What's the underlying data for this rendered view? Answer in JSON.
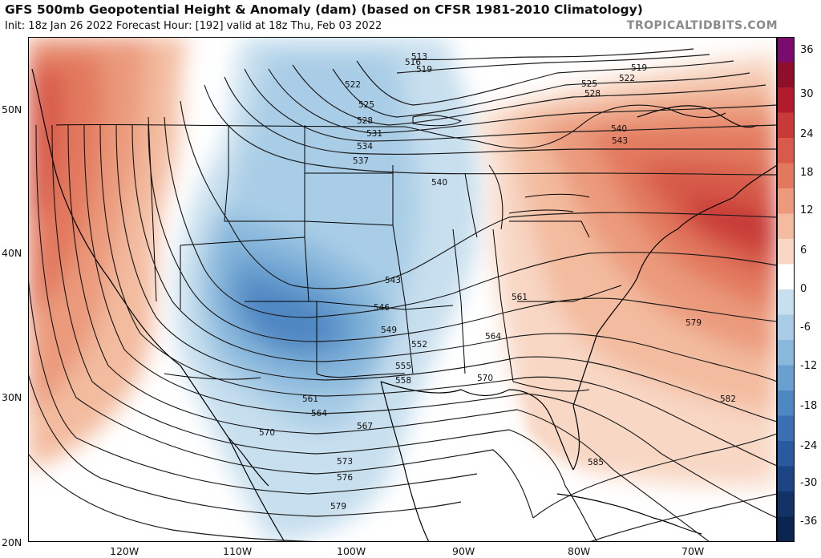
{
  "header": {
    "title": "GFS 500mb Geopotential Height & Anomaly (dam) (based on CFSR 1981-2010 Climatology)",
    "subtitle": "Init: 18z Jan 26 2022   Forecast Hour: [192]   valid at 18z Thu, Feb 03 2022",
    "credit": "TROPICALTIDBITS.COM"
  },
  "axes": {
    "lat_labels": [
      "50N",
      "40N",
      "30N",
      "20N"
    ],
    "lon_labels": [
      "120W",
      "110W",
      "100W",
      "90W",
      "80W",
      "70W"
    ]
  },
  "colorbar": {
    "labels": [
      "36",
      "30",
      "24",
      "18",
      "12",
      "6",
      "0",
      "-6",
      "-12",
      "-18",
      "-24",
      "-30",
      "-36"
    ],
    "colors": [
      "#7a0c6e",
      "#8e0f2a",
      "#b01c2c",
      "#c83a37",
      "#d75a4a",
      "#e2795f",
      "#eb9a7c",
      "#f3bb9f",
      "#f8d7c4",
      "#ffffff",
      "#c7dfee",
      "#a9cde6",
      "#89b8dc",
      "#6aa0d0",
      "#4f87c3",
      "#3a6fb4",
      "#2a5a9e",
      "#1d4584",
      "#133366",
      "#0c2450"
    ]
  },
  "contour_labels": [
    "513",
    "516",
    "519",
    "519",
    "522",
    "522",
    "525",
    "525",
    "528",
    "528",
    "531",
    "534",
    "537",
    "540",
    "540",
    "543",
    "543",
    "546",
    "549",
    "552",
    "555",
    "558",
    "561",
    "561",
    "564",
    "564",
    "567",
    "570",
    "570",
    "573",
    "576",
    "579",
    "579",
    "582",
    "585"
  ],
  "colors": {
    "positive_anomaly": "#d9604c",
    "negative_anomaly": "#3f7fc0",
    "contour": "#1a1a1a",
    "boundary": "#000000"
  }
}
